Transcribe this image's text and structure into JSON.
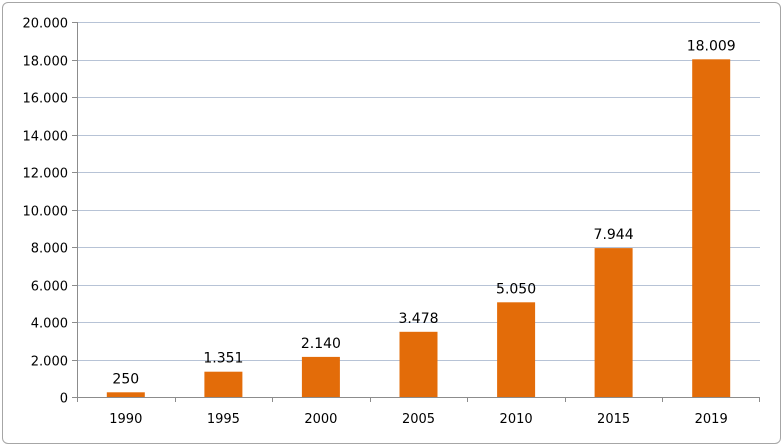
{
  "chart_data": {
    "type": "bar",
    "categories": [
      "1990",
      "1995",
      "2000",
      "2005",
      "2010",
      "2015",
      "2019"
    ],
    "values": [
      250,
      1351,
      2140,
      3478,
      5050,
      7944,
      18009
    ],
    "data_labels": [
      "250",
      "1.351",
      "2.140",
      "3.478",
      "5.050",
      "7.944",
      "18.009"
    ],
    "y_ticks": [
      0,
      2000,
      4000,
      6000,
      8000,
      10000,
      12000,
      14000,
      16000,
      18000,
      20000
    ],
    "y_tick_labels": [
      "0",
      "2.000",
      "4.000",
      "6.000",
      "8.000",
      "10.000",
      "12.000",
      "14.000",
      "16.000",
      "18.000",
      "20.000"
    ],
    "ylim": [
      0,
      20000
    ],
    "title": "",
    "xlabel": "",
    "ylabel": "",
    "grid": true,
    "legend": "none",
    "bar_color": "#e36c09",
    "grid_color": "#b7c3d6"
  }
}
